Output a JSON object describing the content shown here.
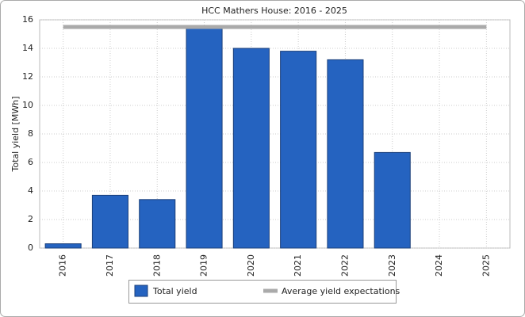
{
  "chart_data": {
    "type": "bar",
    "title": "HCC Mathers House: 2016 - 2025",
    "y_label": "Total yield [MWh]",
    "categories": [
      "2016",
      "2017",
      "2018",
      "2019",
      "2020",
      "2021",
      "2022",
      "2023",
      "2024",
      "2025"
    ],
    "series": [
      {
        "name": "Total yield",
        "type": "bar",
        "color": "#2563c0",
        "values": [
          0.3,
          3.7,
          3.4,
          15.4,
          14.0,
          13.8,
          13.2,
          6.7,
          null,
          null
        ]
      },
      {
        "name": "Average yield expectations",
        "type": "line",
        "color": "#aaaaaa",
        "values": [
          15.5,
          15.5,
          15.5,
          15.5,
          15.5,
          15.5,
          15.5,
          15.5,
          15.5,
          15.5
        ]
      }
    ],
    "ylim": [
      0,
      16
    ],
    "yticks": [
      0,
      2,
      4,
      6,
      8,
      10,
      12,
      14,
      16
    ],
    "grid": true
  }
}
